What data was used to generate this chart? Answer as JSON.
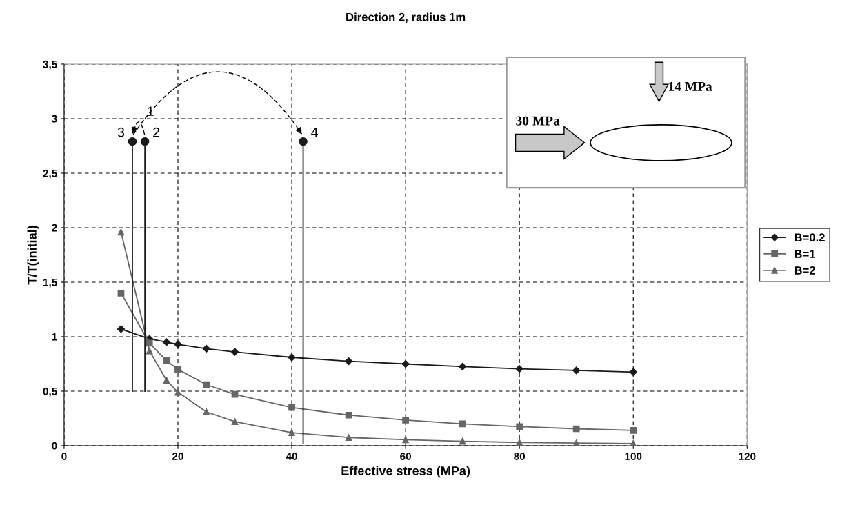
{
  "chart_data": {
    "type": "line",
    "title": "Direction 2, radius 1m",
    "xlabel": "Effective stress (MPa)",
    "ylabel": "T/T(initial)",
    "x": [
      10,
      15,
      18,
      20,
      25,
      30,
      40,
      50,
      60,
      70,
      80,
      90,
      100
    ],
    "series": [
      {
        "name": "B=0.2",
        "color": "#1a1a1a",
        "marker": "diamond",
        "values": [
          1.07,
          0.98,
          0.95,
          0.93,
          0.89,
          0.86,
          0.81,
          0.775,
          0.75,
          0.725,
          0.705,
          0.69,
          0.675
        ]
      },
      {
        "name": "B=1",
        "color": "#666666",
        "marker": "square",
        "values": [
          1.4,
          0.94,
          0.78,
          0.7,
          0.56,
          0.47,
          0.35,
          0.28,
          0.235,
          0.2,
          0.175,
          0.155,
          0.14
        ]
      },
      {
        "name": "B=2",
        "color": "#666666",
        "marker": "triangle",
        "values": [
          1.96,
          0.87,
          0.6,
          0.49,
          0.31,
          0.22,
          0.12,
          0.075,
          0.055,
          0.04,
          0.03,
          0.025,
          0.02
        ]
      },
      {
        "type": "scatter",
        "color": "#1a1a1a",
        "marker": "circle",
        "x": [
          12,
          14.2,
          42
        ],
        "values": [
          2.79,
          2.79,
          2.79
        ]
      },
      {
        "type": "line",
        "color": "#1a1a1a",
        "marker": "none",
        "x": [
          12,
          12
        ],
        "values": [
          0.5,
          2.79
        ]
      },
      {
        "type": "line",
        "color": "#1a1a1a",
        "marker": "none",
        "x": [
          14.2,
          14.2
        ],
        "values": [
          0.5,
          2.79
        ]
      },
      {
        "type": "line",
        "color": "#1a1a1a",
        "marker": "none",
        "x": [
          42,
          42
        ],
        "values": [
          0.02,
          2.79
        ]
      }
    ],
    "xlim": [
      0,
      120
    ],
    "xticks": [
      0,
      20,
      40,
      60,
      80,
      100,
      120
    ],
    "ylim": [
      0,
      3.5
    ],
    "yticks": [
      {
        "value": 0,
        "label": "0"
      },
      {
        "value": 0.5,
        "label": "0,5"
      },
      {
        "value": 1,
        "label": "1"
      },
      {
        "value": 1.5,
        "label": "1,5"
      },
      {
        "value": 2,
        "label": "2"
      },
      {
        "value": 2.5,
        "label": "2,5"
      },
      {
        "value": 3,
        "label": "3"
      },
      {
        "value": 3.5,
        "label": "3,5"
      }
    ],
    "grid": true,
    "legend": "right",
    "annotations": [
      "1",
      {
        "text": "2",
        "x": 14.2,
        "y": 2.79
      },
      {
        "text": "3",
        "x": 12,
        "y": 2.79
      },
      {
        "text": "4",
        "x": 42,
        "y": 2.79
      },
      "30 MPa",
      "14 MPa"
    ]
  }
}
